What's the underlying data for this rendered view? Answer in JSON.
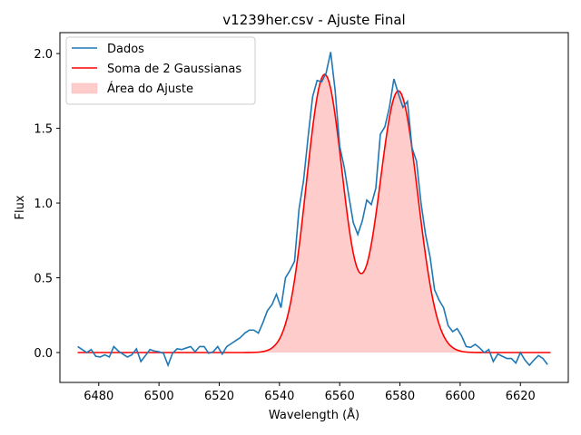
{
  "chart_data": {
    "type": "line",
    "title": "v1239her.csv - Ajuste Final",
    "xlabel": "Wavelength (Å)",
    "ylabel": "Flux",
    "xlim": [
      6467.1,
      6635.9
    ],
    "ylim": [
      -0.2,
      2.14
    ],
    "x_ticks": [
      6480,
      6500,
      6520,
      6540,
      6560,
      6580,
      6600,
      6620
    ],
    "y_ticks": [
      0.0,
      0.5,
      1.0,
      1.5,
      2.0
    ],
    "x_tick_labels": [
      "6480",
      "6500",
      "6520",
      "6540",
      "6560",
      "6580",
      "6600",
      "6620"
    ],
    "y_tick_labels": [
      "0.0",
      "0.5",
      "1.0",
      "1.5",
      "2.0"
    ],
    "grid": false,
    "legend_position": "top-left",
    "series": [
      {
        "name": "Dados",
        "color": "#1f77b4",
        "style": "line",
        "points": [
          [
            6473,
            0.04
          ],
          [
            6474.5,
            0.02
          ],
          [
            6476,
            0.0
          ],
          [
            6477.5,
            0.02
          ],
          [
            6479,
            -0.025
          ],
          [
            6480.5,
            -0.03
          ],
          [
            6482,
            -0.015
          ],
          [
            6483.5,
            -0.03
          ],
          [
            6485,
            0.04
          ],
          [
            6486.5,
            0.01
          ],
          [
            6488,
            -0.01
          ],
          [
            6489.5,
            -0.03
          ],
          [
            6491,
            -0.015
          ],
          [
            6492.5,
            0.025
          ],
          [
            6494,
            -0.06
          ],
          [
            6495.5,
            -0.02
          ],
          [
            6497,
            0.02
          ],
          [
            6498.5,
            0.01
          ],
          [
            6500,
            0.005
          ],
          [
            6501.5,
            -0.005
          ],
          [
            6503,
            -0.085
          ],
          [
            6504.5,
            -0.005
          ],
          [
            6506,
            0.025
          ],
          [
            6507.5,
            0.02
          ],
          [
            6509,
            0.03
          ],
          [
            6510.5,
            0.04
          ],
          [
            6512,
            0.005
          ],
          [
            6513.5,
            0.04
          ],
          [
            6515,
            0.04
          ],
          [
            6516.5,
            -0.005
          ],
          [
            6518,
            0.005
          ],
          [
            6519.5,
            0.04
          ],
          [
            6521,
            -0.01
          ],
          [
            6522.5,
            0.04
          ],
          [
            6524,
            0.06
          ],
          [
            6525.5,
            0.08
          ],
          [
            6527,
            0.1
          ],
          [
            6528.5,
            0.13
          ],
          [
            6530,
            0.15
          ],
          [
            6531.5,
            0.15
          ],
          [
            6533,
            0.13
          ],
          [
            6534.5,
            0.2
          ],
          [
            6536,
            0.28
          ],
          [
            6537.5,
            0.32
          ],
          [
            6539,
            0.39
          ],
          [
            6540.5,
            0.3
          ],
          [
            6542,
            0.5
          ],
          [
            6543.5,
            0.55
          ],
          [
            6545,
            0.61
          ],
          [
            6546.5,
            0.96
          ],
          [
            6548,
            1.15
          ],
          [
            6549.5,
            1.44
          ],
          [
            6551,
            1.71
          ],
          [
            6552.5,
            1.82
          ],
          [
            6554,
            1.81
          ],
          [
            6555.5,
            1.87
          ],
          [
            6557,
            2.01
          ],
          [
            6558.5,
            1.75
          ],
          [
            6560,
            1.38
          ],
          [
            6561.5,
            1.24
          ],
          [
            6563,
            1.05
          ],
          [
            6564.5,
            0.87
          ],
          [
            6566,
            0.79
          ],
          [
            6567.5,
            0.88
          ],
          [
            6569,
            1.02
          ],
          [
            6570.5,
            0.99
          ],
          [
            6572,
            1.1
          ],
          [
            6573.5,
            1.46
          ],
          [
            6575,
            1.51
          ],
          [
            6576.5,
            1.64
          ],
          [
            6578,
            1.83
          ],
          [
            6579.5,
            1.73
          ],
          [
            6581,
            1.64
          ],
          [
            6582.5,
            1.68
          ],
          [
            6584,
            1.37
          ],
          [
            6585.5,
            1.28
          ],
          [
            6587,
            1.0
          ],
          [
            6588.5,
            0.79
          ],
          [
            6590,
            0.64
          ],
          [
            6591.5,
            0.42
          ],
          [
            6593,
            0.35
          ],
          [
            6594.5,
            0.3
          ],
          [
            6596,
            0.18
          ],
          [
            6597.5,
            0.14
          ],
          [
            6599,
            0.16
          ],
          [
            6600.5,
            0.11
          ],
          [
            6602,
            0.04
          ],
          [
            6603.5,
            0.035
          ],
          [
            6605,
            0.055
          ],
          [
            6606.5,
            0.03
          ],
          [
            6608,
            0.0
          ],
          [
            6609.5,
            0.02
          ],
          [
            6611,
            -0.06
          ],
          [
            6612.5,
            -0.01
          ],
          [
            6614,
            -0.025
          ],
          [
            6615.5,
            -0.04
          ],
          [
            6617,
            -0.04
          ],
          [
            6618.5,
            -0.07
          ],
          [
            6620,
            0.0
          ],
          [
            6621.5,
            -0.05
          ],
          [
            6623,
            -0.085
          ],
          [
            6624.5,
            -0.05
          ],
          [
            6626,
            -0.02
          ],
          [
            6627.5,
            -0.04
          ],
          [
            6629,
            -0.08
          ]
        ]
      },
      {
        "name": "Soma de 2 Gaussianas",
        "color": "#ff0000",
        "style": "line",
        "model": {
          "baseline": 0.0,
          "components": [
            {
              "amplitude": 1.86,
              "center": 6555.0,
              "sigma": 6.1
            },
            {
              "amplitude": 1.75,
              "center": 6579.5,
              "sigma": 6.4
            }
          ],
          "x_range": [
            6473,
            6630
          ]
        }
      },
      {
        "name": "Área do Ajuste",
        "color": "#ffcccc",
        "style": "fill-under-fit"
      }
    ]
  }
}
